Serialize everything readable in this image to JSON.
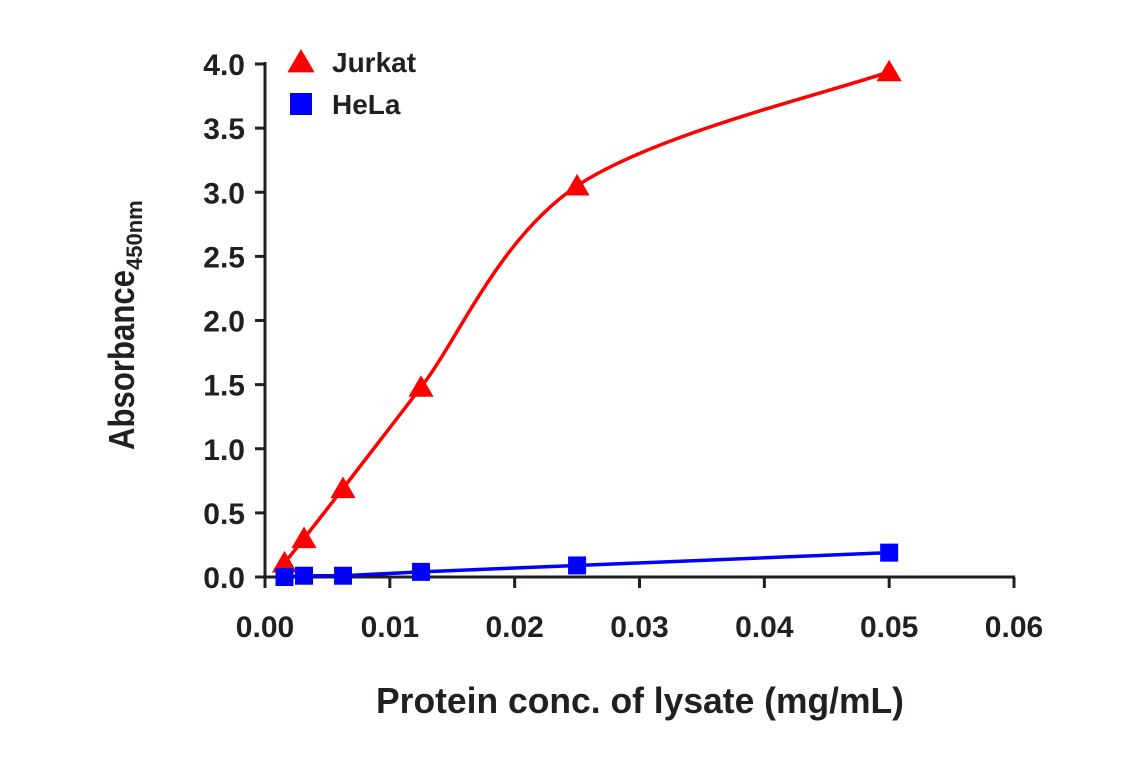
{
  "chart_data": {
    "type": "line",
    "xlabel": "Protein conc. of lysate (mg/mL)",
    "ylabel": "Absorbance",
    "ylabel_subscript": "450nm",
    "xlim": [
      0,
      0.06
    ],
    "ylim": [
      0,
      4.0
    ],
    "x_ticks": [
      "0.00",
      "0.01",
      "0.02",
      "0.03",
      "0.04",
      "0.05",
      "0.06"
    ],
    "x_tick_values": [
      0,
      0.01,
      0.02,
      0.03,
      0.04,
      0.05,
      0.06
    ],
    "y_ticks": [
      "0.0",
      "0.5",
      "1.0",
      "1.5",
      "2.0",
      "2.5",
      "3.0",
      "3.5",
      "4.0"
    ],
    "y_tick_values": [
      0,
      0.5,
      1.0,
      1.5,
      2.0,
      2.5,
      3.0,
      3.5,
      4.0
    ],
    "grid": false,
    "legend_position": "top-left",
    "series": [
      {
        "name": "Jurkat",
        "color": "#ff0000",
        "marker": "triangle",
        "curve": "smooth",
        "x": [
          0.0015625,
          0.003125,
          0.00625,
          0.0125,
          0.025,
          0.05
        ],
        "y": [
          0.11,
          0.3,
          0.69,
          1.48,
          3.05,
          3.94
        ]
      },
      {
        "name": "HeLa",
        "color": "#0000ff",
        "marker": "square",
        "curve": "linear",
        "x": [
          0.0015625,
          0.003125,
          0.00625,
          0.0125,
          0.025,
          0.05
        ],
        "y": [
          0.0,
          0.01,
          0.01,
          0.04,
          0.09,
          0.19
        ]
      }
    ]
  }
}
